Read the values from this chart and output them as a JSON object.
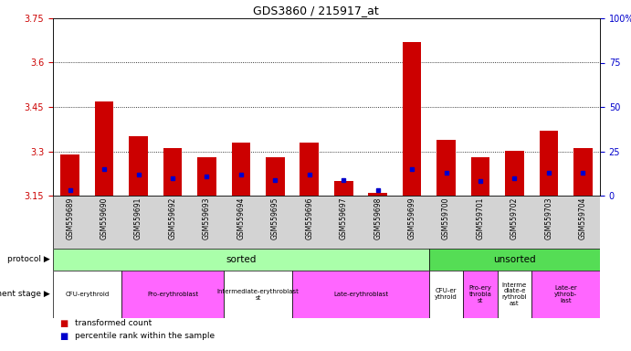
{
  "title": "GDS3860 / 215917_at",
  "samples": [
    "GSM559689",
    "GSM559690",
    "GSM559691",
    "GSM559692",
    "GSM559693",
    "GSM559694",
    "GSM559695",
    "GSM559696",
    "GSM559697",
    "GSM559698",
    "GSM559699",
    "GSM559700",
    "GSM559701",
    "GSM559702",
    "GSM559703",
    "GSM559704"
  ],
  "transformed_count": [
    3.29,
    3.47,
    3.35,
    3.31,
    3.28,
    3.33,
    3.28,
    3.33,
    3.2,
    3.16,
    3.67,
    3.34,
    3.28,
    3.3,
    3.37,
    3.31
  ],
  "percentile_rank": [
    3,
    15,
    12,
    10,
    11,
    12,
    9,
    12,
    9,
    3,
    15,
    13,
    8,
    10,
    13,
    13
  ],
  "ymin": 3.15,
  "ymax": 3.75,
  "y_ticks": [
    3.15,
    3.3,
    3.45,
    3.6,
    3.75
  ],
  "y_ticks_labels": [
    "3.15",
    "3.3",
    "3.45",
    "3.6",
    "3.75"
  ],
  "right_y_ticks": [
    0,
    25,
    50,
    75,
    100
  ],
  "right_y_ticks_labels": [
    "0",
    "25",
    "50",
    "75",
    "100%"
  ],
  "protocol_sorted_count": 11,
  "protocol_color_sorted": "#aaffaa",
  "protocol_color_unsorted": "#55dd55",
  "dev_stage_groups": [
    {
      "label": "CFU-erythroid",
      "start": 0,
      "end": 2,
      "color": "#ffffff"
    },
    {
      "label": "Pro-erythroblast",
      "start": 2,
      "end": 5,
      "color": "#ff66ff"
    },
    {
      "label": "Intermediate-erythroblast\nst",
      "start": 5,
      "end": 7,
      "color": "#ffffff"
    },
    {
      "label": "Late-erythroblast",
      "start": 7,
      "end": 11,
      "color": "#ff66ff"
    },
    {
      "label": "CFU-er\nythroid",
      "start": 11,
      "end": 12,
      "color": "#ffffff"
    },
    {
      "label": "Pro-ery\nthrobla\nst",
      "start": 12,
      "end": 13,
      "color": "#ff66ff"
    },
    {
      "label": "Interme\ndiate-e\nrythrobl\nast",
      "start": 13,
      "end": 14,
      "color": "#ffffff"
    },
    {
      "label": "Late-er\nythrob-\nlast",
      "start": 14,
      "end": 16,
      "color": "#ff66ff"
    }
  ],
  "bar_color": "#cc0000",
  "percentile_color": "#0000cc",
  "tick_color_left": "#cc0000",
  "tick_color_right": "#0000cc",
  "grid_lines": [
    3.3,
    3.45,
    3.6
  ],
  "xtick_bg": "#d3d3d3",
  "fig_width": 6.91,
  "fig_height": 3.84,
  "dpi": 100
}
